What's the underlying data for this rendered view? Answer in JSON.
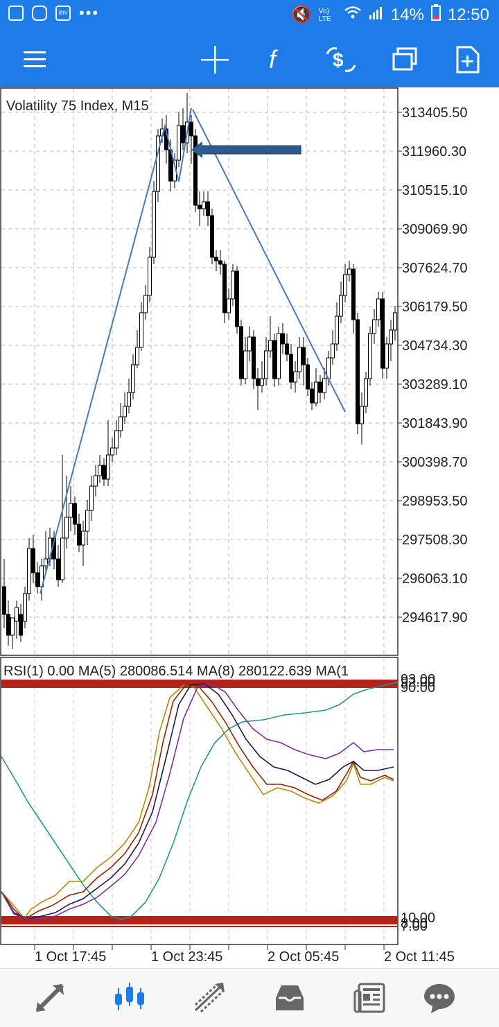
{
  "status_bar": {
    "battery": "14%",
    "time": "12:50",
    "network": "Vo) LTE",
    "icons": [
      "gallery-icon",
      "instagram-icon",
      "investing-icon",
      "more-dots-icon",
      "mute-icon",
      "wifi-icon",
      "signal-icon",
      "battery-icon"
    ]
  },
  "toolbar": {
    "icons": [
      "menu-icon",
      "crosshair-icon",
      "function-icon",
      "trade-icon",
      "windows-icon",
      "new-order-icon"
    ]
  },
  "chart": {
    "title": "Volatility 75 Index, M15",
    "price_labels": [
      "313405.50",
      "311960.30",
      "310515.10",
      "309069.90",
      "307624.70",
      "306179.50",
      "304734.30",
      "303289.10",
      "301843.90",
      "300398.70",
      "298953.50",
      "297508.30",
      "296063.10",
      "294617.90"
    ],
    "time_labels": [
      "1 Oct 17:45",
      "1 Oct 23:45",
      "2 Oct 05:45",
      "2 Oct 11:45"
    ],
    "colors": {
      "grid": "#b8b8b8",
      "candle": "#000000",
      "trendline": "#4a78c0",
      "arrow": "#2f5a8c"
    }
  },
  "indicator": {
    "header": "RSI(1) 0.00 MA(5) 280086.514 MA(8) 280122.639 MA(1",
    "level_labels_top": [
      "92.00",
      "93.00",
      "90.00"
    ],
    "level_labels_bottom": [
      "10.00",
      "8.00",
      "7.00"
    ],
    "colors": {
      "band": "#b22418",
      "ma_gold": "#b8860b",
      "ma_brown": "#8b2500",
      "ma_dark": "#1a1a4a",
      "ma_purple": "#7b2fa0",
      "ma_teal": "#2a9090"
    }
  },
  "bottom_nav": {
    "items": [
      "quotes-icon",
      "chart-icon",
      "trade-icon",
      "history-icon",
      "news-icon",
      "chat-icon"
    ],
    "active": "chart-icon"
  }
}
